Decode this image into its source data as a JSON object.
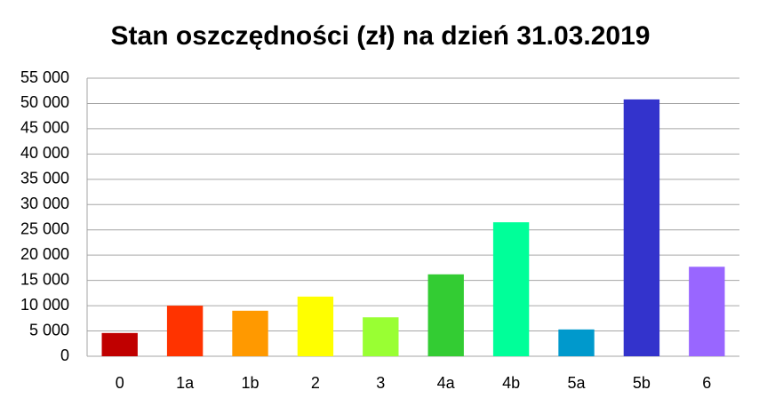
{
  "chart_data": {
    "type": "bar",
    "title": "Stan oszczędności (zł) na dzień 31.03.2019",
    "categories": [
      "0",
      "1a",
      "1b",
      "2",
      "3",
      "4a",
      "4b",
      "5a",
      "5b",
      "6"
    ],
    "values": [
      4600,
      10000,
      9000,
      11800,
      7700,
      16200,
      26500,
      5300,
      50800,
      17700
    ],
    "colors": [
      "#c00000",
      "#ff3300",
      "#ff9900",
      "#ffff00",
      "#99ff33",
      "#33cc33",
      "#00ff99",
      "#0099cc",
      "#3333cc",
      "#9966ff"
    ],
    "ylim": [
      0,
      55000
    ],
    "yticks": [
      0,
      {
        "value": 5000,
        "label": "5 000"
      },
      {
        "value": 10000,
        "label": "10 000"
      },
      {
        "value": 15000,
        "label": "15 000"
      },
      {
        "value": 20000,
        "label": "20 000"
      },
      {
        "value": 25000,
        "label": "25 000"
      },
      {
        "value": 30000,
        "label": "30 000"
      },
      {
        "value": 35000,
        "label": "35 000"
      },
      {
        "value": 40000,
        "label": "40 000"
      },
      {
        "value": 45000,
        "label": "45 000"
      },
      {
        "value": 50000,
        "label": "50 000"
      },
      {
        "value": 55000,
        "label": "55 000"
      }
    ],
    "grid": true
  }
}
